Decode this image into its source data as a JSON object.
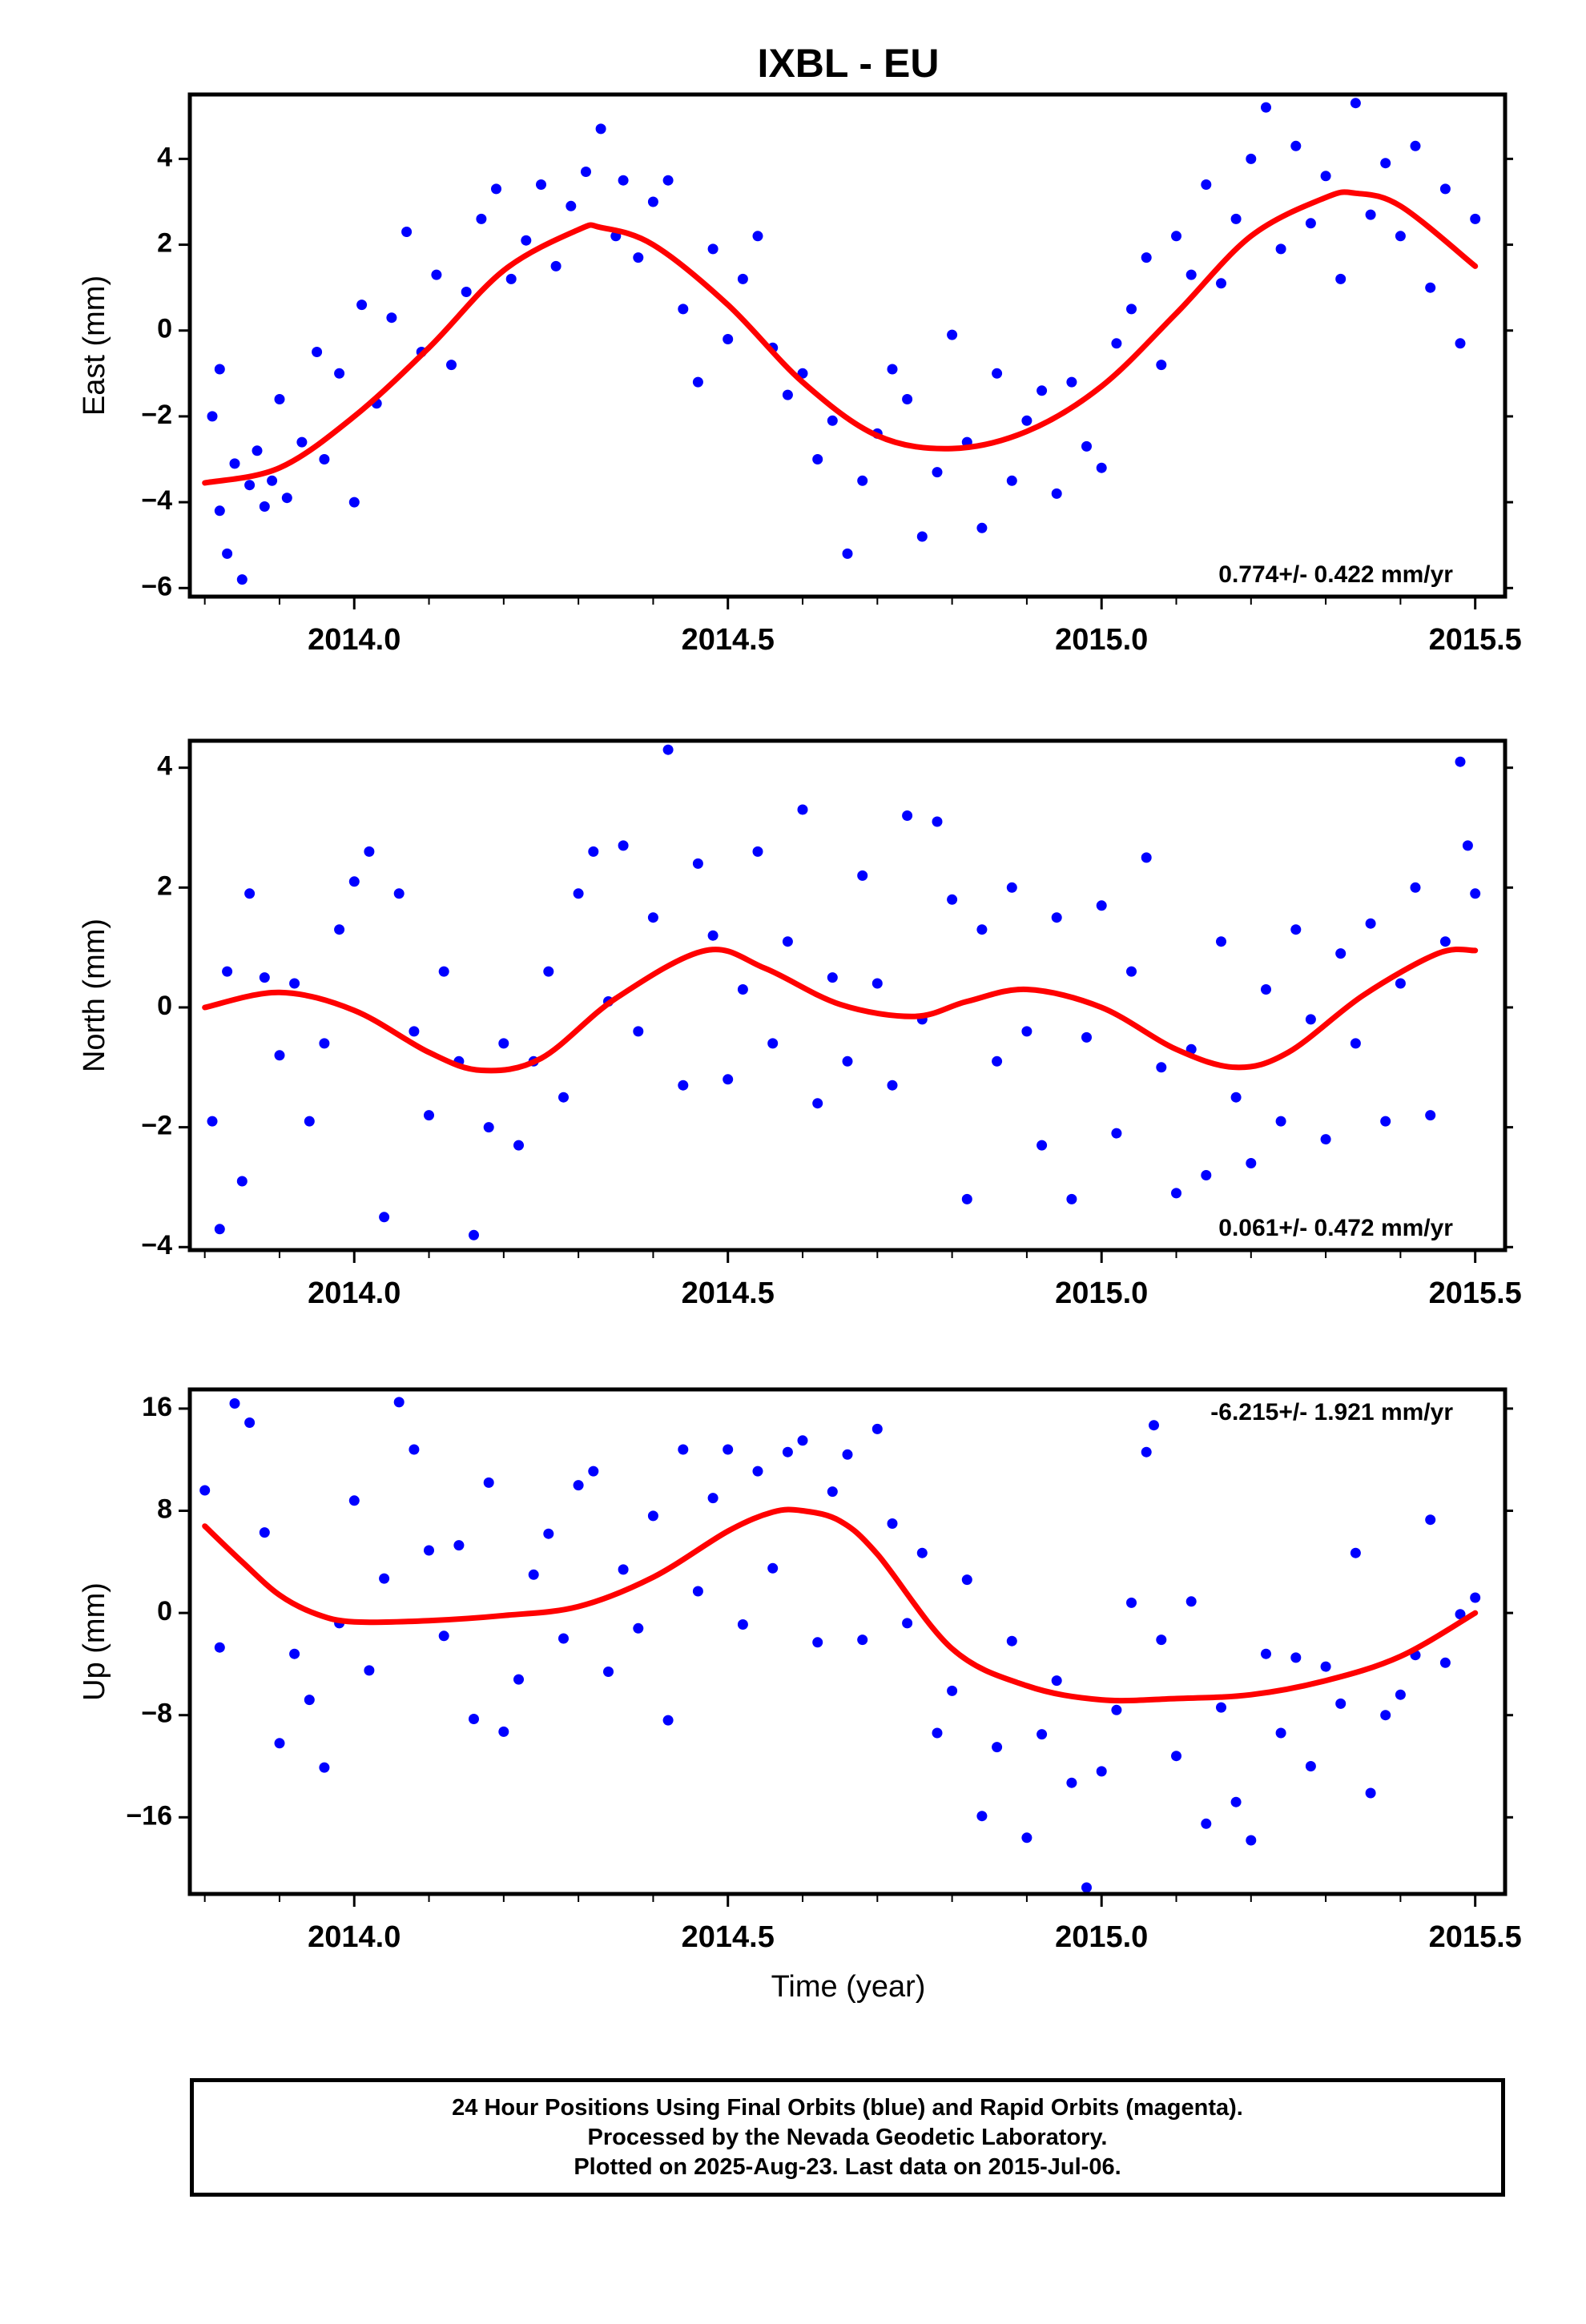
{
  "title": "IXBL - EU",
  "x_axis_title": "Time (year)",
  "caption": {
    "line1": "24 Hour Positions Using Final Orbits (blue) and Rapid Orbits (magenta).",
    "line2": "Processed by the Nevada Geodetic Laboratory.",
    "line3": "Plotted on 2025-Aug-23. Last data on 2015-Jul-06."
  },
  "colors": {
    "observations": "#0000ff",
    "model_fit": "#ff0000"
  },
  "chart_data": [
    {
      "type": "scatter",
      "name": "east",
      "ylabel": "East (mm)",
      "xlim": [
        2013.78,
        2015.54
      ],
      "ylim": [
        -6.2,
        5.5
      ],
      "xticks": [
        2014.0,
        2014.5,
        2015.0,
        2015.5
      ],
      "xtick_labels": [
        "2014.0",
        "2014.5",
        "2015.0",
        "2015.5"
      ],
      "yticks": [
        -6,
        -4,
        -2,
        0,
        2,
        4
      ],
      "rate_text": "0.774+/- 0.422 mm/yr",
      "rate_position": "bottom-right",
      "fit": {
        "x": [
          2013.8,
          2013.9,
          2014.0,
          2014.1,
          2014.2,
          2014.3,
          2014.33,
          2014.4,
          2014.5,
          2014.6,
          2014.7,
          2014.8,
          2014.9,
          2015.0,
          2015.1,
          2015.2,
          2015.3,
          2015.34,
          2015.4,
          2015.5
        ],
        "y": [
          -3.55,
          -3.2,
          -2.0,
          -0.4,
          1.4,
          2.35,
          2.4,
          2.0,
          0.6,
          -1.2,
          -2.45,
          -2.75,
          -2.35,
          -1.3,
          0.4,
          2.2,
          3.1,
          3.2,
          2.9,
          1.5
        ]
      },
      "points": {
        "x": [
          2013.81,
          2013.82,
          2013.82,
          2013.83,
          2013.84,
          2013.85,
          2013.86,
          2013.87,
          2013.88,
          2013.89,
          2013.9,
          2013.91,
          2013.93,
          2013.95,
          2013.96,
          2013.98,
          2014.0,
          2014.01,
          2014.03,
          2014.05,
          2014.07,
          2014.09,
          2014.11,
          2014.13,
          2014.15,
          2014.17,
          2014.19,
          2014.21,
          2014.23,
          2014.25,
          2014.27,
          2014.29,
          2014.31,
          2014.33,
          2014.35,
          2014.36,
          2014.38,
          2014.4,
          2014.42,
          2014.44,
          2014.46,
          2014.48,
          2014.5,
          2014.52,
          2014.54,
          2014.56,
          2014.58,
          2014.6,
          2014.62,
          2014.64,
          2014.66,
          2014.68,
          2014.7,
          2014.72,
          2014.74,
          2014.76,
          2014.78,
          2014.8,
          2014.82,
          2014.84,
          2014.86,
          2014.88,
          2014.9,
          2014.92,
          2014.94,
          2014.96,
          2014.98,
          2015.0,
          2015.02,
          2015.04,
          2015.06,
          2015.08,
          2015.1,
          2015.12,
          2015.14,
          2015.16,
          2015.18,
          2015.2,
          2015.22,
          2015.24,
          2015.26,
          2015.28,
          2015.3,
          2015.32,
          2015.34,
          2015.36,
          2015.38,
          2015.4,
          2015.42,
          2015.44,
          2015.46,
          2015.48,
          2015.5
        ],
        "y": [
          -2.0,
          -4.2,
          -0.9,
          -5.2,
          -3.1,
          -5.8,
          -3.6,
          -2.8,
          -4.1,
          -3.5,
          -1.6,
          -3.9,
          -2.6,
          -0.5,
          -3.0,
          -1.0,
          -4.0,
          0.6,
          -1.7,
          0.3,
          2.3,
          -0.5,
          1.3,
          -0.8,
          0.9,
          2.6,
          3.3,
          1.2,
          2.1,
          3.4,
          1.5,
          2.9,
          3.7,
          4.7,
          2.2,
          3.5,
          1.7,
          3.0,
          3.5,
          0.5,
          -1.2,
          1.9,
          -0.2,
          1.2,
          2.2,
          -0.4,
          -1.5,
          -1.0,
          -3.0,
          -2.1,
          -5.2,
          -3.5,
          -2.4,
          -0.9,
          -1.6,
          -4.8,
          -3.3,
          -0.1,
          -2.6,
          -4.6,
          -1.0,
          -3.5,
          -2.1,
          -1.4,
          -3.8,
          -1.2,
          -2.7,
          -3.2,
          -0.3,
          0.5,
          1.7,
          -0.8,
          2.2,
          1.3,
          3.4,
          1.1,
          2.6,
          4.0,
          5.2,
          1.9,
          4.3,
          2.5,
          3.6,
          1.2,
          5.3,
          2.7,
          3.9,
          2.2,
          4.3,
          1.0,
          3.3,
          -0.3,
          2.6
        ]
      }
    },
    {
      "type": "scatter",
      "name": "north",
      "ylabel": "North (mm)",
      "xlim": [
        2013.78,
        2015.54
      ],
      "ylim": [
        -4.05,
        4.45
      ],
      "xticks": [
        2014.0,
        2014.5,
        2015.0,
        2015.5
      ],
      "xtick_labels": [
        "2014.0",
        "2014.5",
        "2015.0",
        "2015.5"
      ],
      "yticks": [
        -4,
        -2,
        0,
        2,
        4
      ],
      "rate_text": "0.061+/- 0.472 mm/yr",
      "rate_position": "bottom-right",
      "fit": {
        "x": [
          2013.8,
          2013.9,
          2014.0,
          2014.1,
          2014.17,
          2014.25,
          2014.35,
          2014.47,
          2014.55,
          2014.65,
          2014.75,
          2014.82,
          2014.9,
          2015.0,
          2015.1,
          2015.18,
          2015.25,
          2015.35,
          2015.45,
          2015.5
        ],
        "y": [
          0.0,
          0.25,
          -0.05,
          -0.75,
          -1.05,
          -0.85,
          0.15,
          0.95,
          0.65,
          0.05,
          -0.15,
          0.1,
          0.3,
          0.0,
          -0.7,
          -1.0,
          -0.75,
          0.2,
          0.9,
          0.95
        ]
      },
      "points": {
        "x": [
          2013.81,
          2013.82,
          2013.83,
          2013.85,
          2013.86,
          2013.88,
          2013.9,
          2013.92,
          2013.94,
          2013.96,
          2013.98,
          2014.0,
          2014.02,
          2014.04,
          2014.06,
          2014.08,
          2014.1,
          2014.12,
          2014.14,
          2014.16,
          2014.18,
          2014.2,
          2014.22,
          2014.24,
          2014.26,
          2014.28,
          2014.3,
          2014.32,
          2014.34,
          2014.36,
          2014.38,
          2014.4,
          2014.42,
          2014.44,
          2014.46,
          2014.48,
          2014.5,
          2014.52,
          2014.54,
          2014.56,
          2014.58,
          2014.6,
          2014.62,
          2014.64,
          2014.66,
          2014.68,
          2014.7,
          2014.72,
          2014.74,
          2014.76,
          2014.78,
          2014.8,
          2014.82,
          2014.84,
          2014.86,
          2014.88,
          2014.9,
          2014.92,
          2014.94,
          2014.96,
          2014.98,
          2015.0,
          2015.02,
          2015.04,
          2015.06,
          2015.08,
          2015.1,
          2015.12,
          2015.14,
          2015.16,
          2015.18,
          2015.2,
          2015.22,
          2015.24,
          2015.26,
          2015.28,
          2015.3,
          2015.32,
          2015.34,
          2015.36,
          2015.38,
          2015.4,
          2015.42,
          2015.44,
          2015.46,
          2015.48,
          2015.49,
          2015.5
        ],
        "y": [
          -1.9,
          -3.7,
          0.6,
          -2.9,
          1.9,
          0.5,
          -0.8,
          0.4,
          -1.9,
          -0.6,
          1.3,
          2.1,
          2.6,
          -3.5,
          1.9,
          -0.4,
          -1.8,
          0.6,
          -0.9,
          -3.8,
          -2.0,
          -0.6,
          -2.3,
          -0.9,
          0.6,
          -1.5,
          1.9,
          2.6,
          0.1,
          2.7,
          -0.4,
          1.5,
          4.3,
          -1.3,
          2.4,
          1.2,
          -1.2,
          0.3,
          2.6,
          -0.6,
          1.1,
          3.3,
          -1.6,
          0.5,
          -0.9,
          2.2,
          0.4,
          -1.3,
          3.2,
          -0.2,
          3.1,
          1.8,
          -3.2,
          1.3,
          -0.9,
          2.0,
          -0.4,
          -2.3,
          1.5,
          -3.2,
          -0.5,
          1.7,
          -2.1,
          0.6,
          2.5,
          -1.0,
          -3.1,
          -0.7,
          -2.8,
          1.1,
          -1.5,
          -2.6,
          0.3,
          -1.9,
          1.3,
          -0.2,
          -2.2,
          0.9,
          -0.6,
          1.4,
          -1.9,
          0.4,
          2.0,
          -1.8,
          1.1,
          4.1,
          2.7,
          1.9
        ]
      }
    },
    {
      "type": "scatter",
      "name": "up",
      "ylabel": "Up (mm)",
      "xlim": [
        2013.78,
        2015.54
      ],
      "ylim": [
        -22,
        17.5
      ],
      "xticks": [
        2014.0,
        2014.5,
        2015.0,
        2015.5
      ],
      "xtick_labels": [
        "2014.0",
        "2014.5",
        "2015.0",
        "2015.5"
      ],
      "yticks": [
        -16,
        -8,
        0,
        8,
        16
      ],
      "rate_text": "-6.215+/- 1.921 mm/yr",
      "rate_position": "top-right",
      "fit": {
        "x": [
          2013.8,
          2013.85,
          2013.9,
          2013.95,
          2014.0,
          2014.1,
          2014.2,
          2014.3,
          2014.4,
          2014.5,
          2014.56,
          2014.6,
          2014.65,
          2014.7,
          2014.8,
          2014.9,
          2015.0,
          2015.1,
          2015.2,
          2015.3,
          2015.4,
          2015.5
        ],
        "y": [
          6.8,
          4.0,
          1.4,
          -0.1,
          -0.7,
          -0.6,
          -0.2,
          0.5,
          2.8,
          6.4,
          7.9,
          8.0,
          7.2,
          4.6,
          -2.8,
          -5.7,
          -6.8,
          -6.7,
          -6.4,
          -5.3,
          -3.4,
          0.0
        ]
      },
      "points": {
        "x": [
          2013.8,
          2013.82,
          2013.84,
          2013.86,
          2013.88,
          2013.9,
          2013.92,
          2013.94,
          2013.96,
          2013.98,
          2014.0,
          2014.02,
          2014.04,
          2014.06,
          2014.08,
          2014.1,
          2014.12,
          2014.14,
          2014.16,
          2014.18,
          2014.2,
          2014.22,
          2014.24,
          2014.26,
          2014.28,
          2014.3,
          2014.32,
          2014.34,
          2014.36,
          2014.38,
          2014.4,
          2014.42,
          2014.44,
          2014.46,
          2014.48,
          2014.5,
          2014.52,
          2014.54,
          2014.56,
          2014.58,
          2014.6,
          2014.62,
          2014.64,
          2014.66,
          2014.68,
          2014.7,
          2014.72,
          2014.74,
          2014.76,
          2014.78,
          2014.8,
          2014.82,
          2014.84,
          2014.86,
          2014.88,
          2014.9,
          2014.92,
          2014.94,
          2014.96,
          2014.98,
          2015.0,
          2015.02,
          2015.04,
          2015.06,
          2015.07,
          2015.08,
          2015.1,
          2015.12,
          2015.14,
          2015.16,
          2015.18,
          2015.2,
          2015.22,
          2015.24,
          2015.26,
          2015.28,
          2015.3,
          2015.32,
          2015.34,
          2015.36,
          2015.38,
          2015.4,
          2015.42,
          2015.44,
          2015.46,
          2015.48,
          2015.5
        ],
        "y": [
          9.6,
          -2.7,
          16.4,
          14.9,
          6.3,
          -10.2,
          -3.2,
          -6.8,
          -12.1,
          -0.8,
          8.8,
          -4.5,
          2.7,
          16.5,
          12.8,
          4.9,
          -1.8,
          5.3,
          -8.3,
          10.2,
          -9.3,
          -5.2,
          3.0,
          6.2,
          -2.0,
          10.0,
          11.1,
          -4.6,
          3.4,
          -1.2,
          7.6,
          -8.4,
          12.8,
          1.7,
          9.0,
          12.8,
          -0.9,
          11.1,
          3.5,
          12.6,
          13.5,
          -2.3,
          9.5,
          12.4,
          -2.1,
          14.4,
          7.0,
          -0.8,
          4.7,
          -9.4,
          -6.1,
          2.6,
          -15.9,
          -10.5,
          -2.2,
          -17.6,
          -9.5,
          -5.3,
          -13.3,
          -21.5,
          -12.4,
          -7.6,
          0.8,
          12.6,
          14.7,
          -2.1,
          -11.2,
          0.9,
          -16.5,
          -7.4,
          -14.8,
          -17.8,
          -3.2,
          -9.4,
          -3.5,
          -12.0,
          -4.2,
          -7.1,
          4.7,
          -14.1,
          -8.0,
          -6.4,
          -3.3,
          7.3,
          -3.9,
          -0.1,
          1.2
        ]
      }
    }
  ]
}
